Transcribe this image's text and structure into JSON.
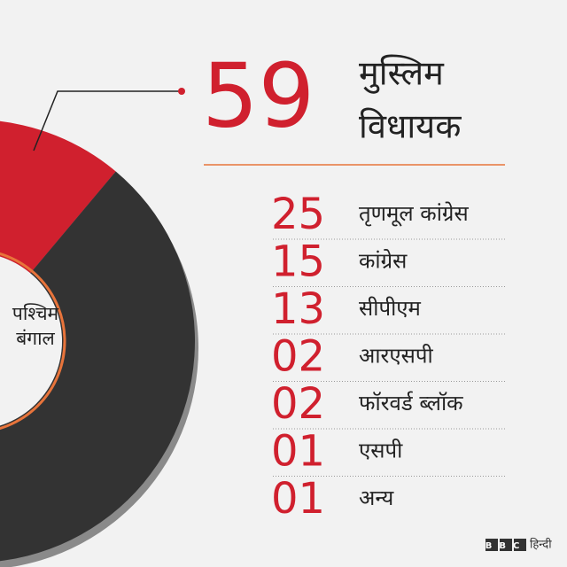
{
  "chart_data": {
    "type": "donut",
    "center_label": [
      "पश्चिम",
      "बंगाल"
    ],
    "values": [
      59,
      235
    ],
    "colors": [
      "#d0202e",
      "#333333"
    ]
  },
  "headline": {
    "lines": [
      "मुस्लिम",
      "विधायक"
    ]
  },
  "table": {
    "rows": [
      [
        "25",
        "तृणमूल कांग्रेस"
      ],
      [
        "15",
        "कांग्रेस"
      ],
      [
        "13",
        "सीपीएम"
      ],
      [
        "02",
        "आरएसपी"
      ],
      [
        "02",
        "फॉरवर्ड ब्लॉक"
      ],
      [
        "01",
        "एसपी"
      ],
      [
        "01",
        "अन्य"
      ]
    ]
  },
  "footer": {
    "brand": "BBC",
    "language": "हिन्दी"
  }
}
